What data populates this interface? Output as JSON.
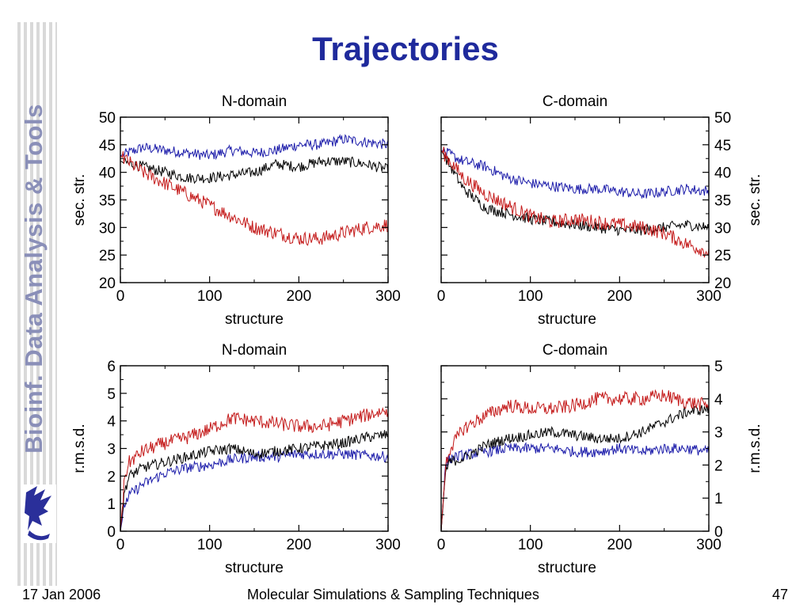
{
  "slide": {
    "title": "Trajectories",
    "sidebar_text": "Bioinf. Data Analysis & Tools",
    "footer_date": "17 Jan 2006",
    "footer_title": "Molecular Simulations & Sampling Techniques",
    "footer_page": "47"
  },
  "colors": {
    "title": "#1f2a9c",
    "sidebar": "#8a8fb8",
    "series_blue": "#1c1caa",
    "series_black": "#000000",
    "series_red": "#c41a1a"
  },
  "icons": {
    "logo": "griffin-logo-icon"
  },
  "chart_data": [
    {
      "type": "line",
      "title": "N-domain",
      "xlabel": "structure",
      "ylabel": "sec. str.",
      "xlim": [
        0,
        300
      ],
      "ylim": [
        20,
        50
      ],
      "xticks": [
        0,
        100,
        200,
        300
      ],
      "yticks": [
        20,
        25,
        30,
        35,
        40,
        45,
        50
      ],
      "yaxis_side": "left",
      "grid": false,
      "series": [
        {
          "color": "blue",
          "x": [
            0,
            25,
            50,
            75,
            100,
            125,
            150,
            175,
            200,
            225,
            250,
            275,
            300
          ],
          "y": [
            43,
            44.5,
            44,
            43.5,
            43,
            44,
            43.5,
            44,
            45,
            45,
            46,
            45.5,
            45
          ]
        },
        {
          "color": "black",
          "x": [
            0,
            25,
            50,
            75,
            100,
            125,
            150,
            175,
            200,
            225,
            250,
            275,
            300
          ],
          "y": [
            42,
            41,
            40,
            39,
            39,
            39.5,
            40,
            41.5,
            41,
            42,
            42,
            41.5,
            40.5
          ]
        },
        {
          "color": "red",
          "x": [
            0,
            25,
            50,
            75,
            100,
            125,
            150,
            175,
            200,
            225,
            250,
            275,
            300
          ],
          "y": [
            43,
            40,
            38,
            36,
            34,
            32,
            30,
            29,
            28,
            28,
            29,
            30,
            30.5
          ]
        }
      ]
    },
    {
      "type": "line",
      "title": "C-domain",
      "xlabel": "structure",
      "ylabel": "sec. str.",
      "xlim": [
        0,
        300
      ],
      "ylim": [
        20,
        50
      ],
      "xticks": [
        0,
        100,
        200,
        300
      ],
      "yticks": [
        20,
        25,
        30,
        35,
        40,
        45,
        50
      ],
      "yaxis_side": "right",
      "grid": false,
      "series": [
        {
          "color": "blue",
          "x": [
            0,
            25,
            50,
            75,
            100,
            125,
            150,
            175,
            200,
            225,
            250,
            275,
            300
          ],
          "y": [
            44,
            42,
            41,
            39,
            38,
            37.5,
            37,
            37,
            36.5,
            36,
            36.5,
            37,
            36.5
          ]
        },
        {
          "color": "black",
          "x": [
            0,
            25,
            50,
            75,
            100,
            125,
            150,
            175,
            200,
            225,
            250,
            275,
            300
          ],
          "y": [
            44,
            37,
            33.5,
            32.5,
            31.5,
            31,
            30.5,
            30,
            29.5,
            29.5,
            30,
            30.5,
            30
          ]
        },
        {
          "color": "red",
          "x": [
            0,
            25,
            50,
            75,
            100,
            125,
            150,
            175,
            200,
            225,
            250,
            275,
            300
          ],
          "y": [
            44,
            39,
            36,
            34,
            32,
            31,
            31.5,
            31,
            30.5,
            30,
            29,
            27,
            25.5
          ]
        }
      ]
    },
    {
      "type": "line",
      "title": "N-domain",
      "xlabel": "structure",
      "ylabel": "r.m.s.d.",
      "xlim": [
        0,
        300
      ],
      "ylim": [
        0,
        6
      ],
      "xticks": [
        0,
        100,
        200,
        300
      ],
      "yticks": [
        0,
        1,
        2,
        3,
        4,
        5,
        6
      ],
      "yaxis_side": "left",
      "grid": false,
      "series": [
        {
          "color": "blue",
          "x": [
            0,
            5,
            10,
            25,
            50,
            75,
            100,
            125,
            150,
            175,
            200,
            225,
            250,
            275,
            300
          ],
          "y": [
            0,
            1,
            1.3,
            1.7,
            2.1,
            2.3,
            2.4,
            2.6,
            2.7,
            2.7,
            2.8,
            2.8,
            2.8,
            2.75,
            2.7
          ]
        },
        {
          "color": "black",
          "x": [
            0,
            5,
            10,
            25,
            50,
            75,
            100,
            125,
            150,
            175,
            200,
            225,
            250,
            275,
            300
          ],
          "y": [
            0,
            1.5,
            2,
            2.3,
            2.5,
            2.7,
            2.9,
            3,
            2.8,
            2.9,
            3,
            3.1,
            3.2,
            3.4,
            3.5
          ]
        },
        {
          "color": "red",
          "x": [
            0,
            5,
            10,
            25,
            50,
            75,
            100,
            125,
            150,
            175,
            200,
            225,
            250,
            275,
            300
          ],
          "y": [
            0,
            2,
            2.5,
            2.9,
            3.2,
            3.4,
            3.7,
            4.1,
            4,
            3.9,
            3.8,
            3.8,
            4,
            4.2,
            4.4
          ]
        }
      ]
    },
    {
      "type": "line",
      "title": "C-domain",
      "xlabel": "structure",
      "ylabel": "r.m.s.d.",
      "xlim": [
        0,
        300
      ],
      "ylim": [
        0,
        5
      ],
      "xticks": [
        0,
        100,
        200,
        300
      ],
      "yticks": [
        0,
        1,
        2,
        3,
        4,
        5
      ],
      "yaxis_side": "right",
      "grid": false,
      "series": [
        {
          "color": "blue",
          "x": [
            0,
            5,
            10,
            25,
            50,
            75,
            100,
            125,
            150,
            175,
            200,
            225,
            250,
            275,
            300
          ],
          "y": [
            0,
            2,
            2.2,
            2.3,
            2.4,
            2.5,
            2.5,
            2.5,
            2.4,
            2.4,
            2.5,
            2.4,
            2.5,
            2.5,
            2.4
          ]
        },
        {
          "color": "black",
          "x": [
            0,
            5,
            10,
            25,
            50,
            75,
            100,
            125,
            150,
            175,
            200,
            225,
            250,
            275,
            300
          ],
          "y": [
            0,
            1.8,
            2.1,
            2.2,
            2.6,
            2.8,
            2.9,
            3,
            2.9,
            2.8,
            2.8,
            3,
            3.3,
            3.6,
            3.7
          ]
        },
        {
          "color": "red",
          "x": [
            0,
            5,
            10,
            25,
            50,
            75,
            100,
            125,
            150,
            175,
            200,
            225,
            250,
            275,
            300
          ],
          "y": [
            0,
            2,
            2.5,
            3.1,
            3.5,
            3.8,
            3.7,
            3.7,
            3.8,
            4,
            4,
            4,
            4.1,
            3.9,
            3.8
          ]
        }
      ]
    }
  ]
}
